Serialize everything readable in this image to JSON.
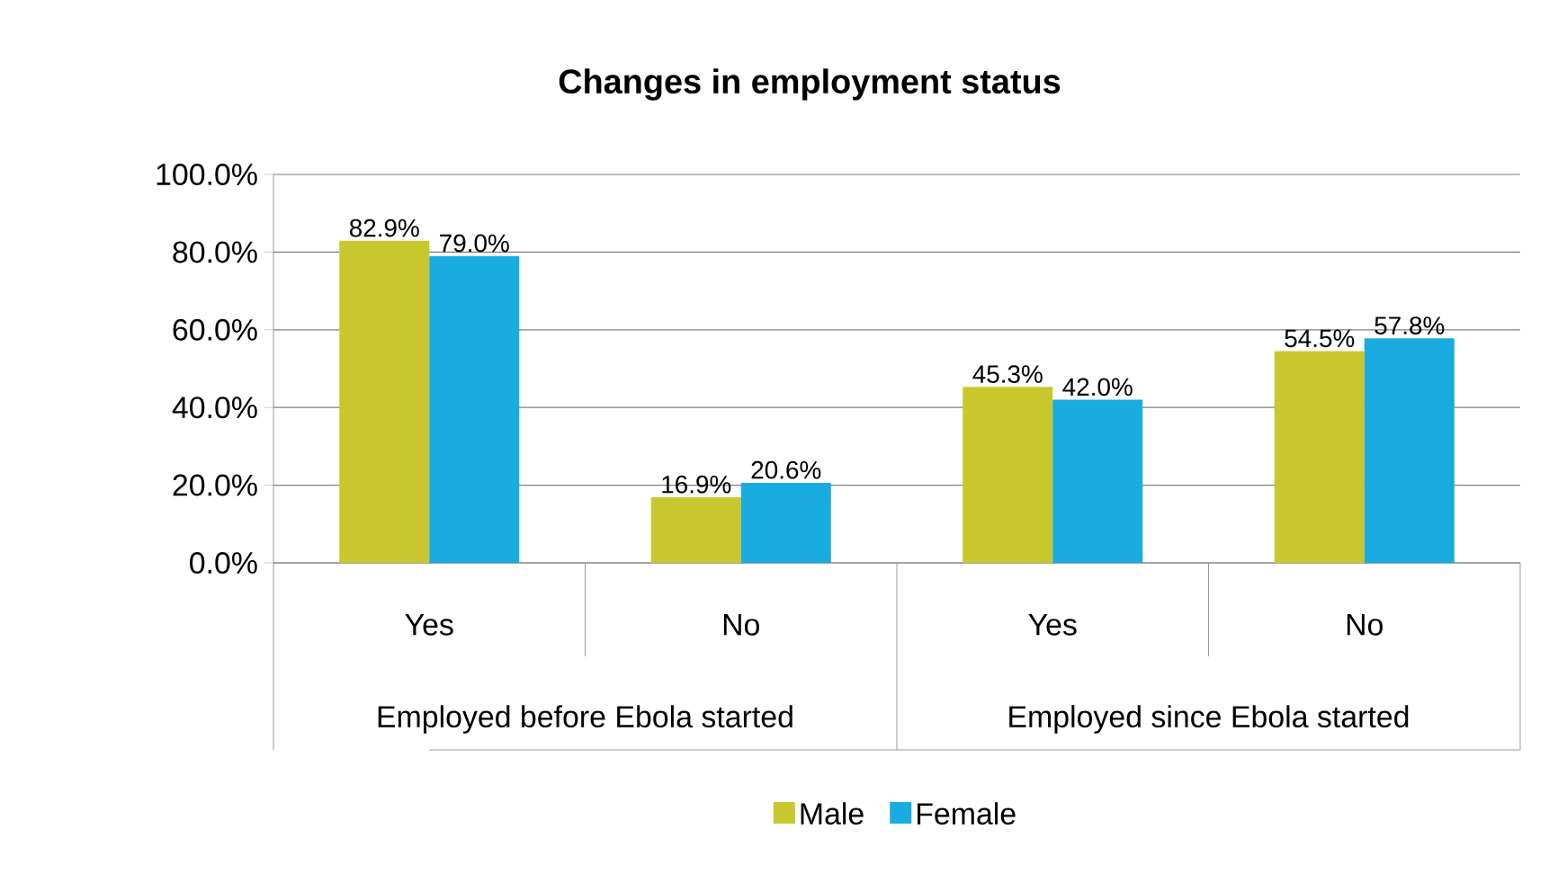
{
  "chart_data": {
    "type": "bar",
    "title": "Changes in employment status",
    "categories": [
      "Yes",
      "No",
      "Yes",
      "No"
    ],
    "annotations": [
      "Employed before Ebola started",
      "Employed since Ebola started"
    ],
    "series": [
      {
        "name": "Male",
        "color": "#c8c72e",
        "values": [
          82.9,
          16.9,
          45.3,
          54.5
        ],
        "value_labels": [
          "82.9%",
          "16.9%",
          "45.3%",
          "54.5%"
        ]
      },
      {
        "name": "Female",
        "color": "#1aabe0",
        "values": [
          79.0,
          20.6,
          42.0,
          57.8
        ],
        "value_labels": [
          "79.0%",
          "20.6%",
          "42.0%",
          "57.8%"
        ]
      }
    ],
    "ylim": [
      0,
      100
    ],
    "yticks": [
      {
        "value": 0,
        "label": "0.0%"
      },
      {
        "value": 20,
        "label": "20.0%"
      },
      {
        "value": 40,
        "label": "40.0%"
      },
      {
        "value": 60,
        "label": "60.0%"
      },
      {
        "value": 80,
        "label": "80.0%"
      },
      {
        "value": 100,
        "label": "100.0%"
      }
    ],
    "grid": "y",
    "legend": "bottom"
  }
}
